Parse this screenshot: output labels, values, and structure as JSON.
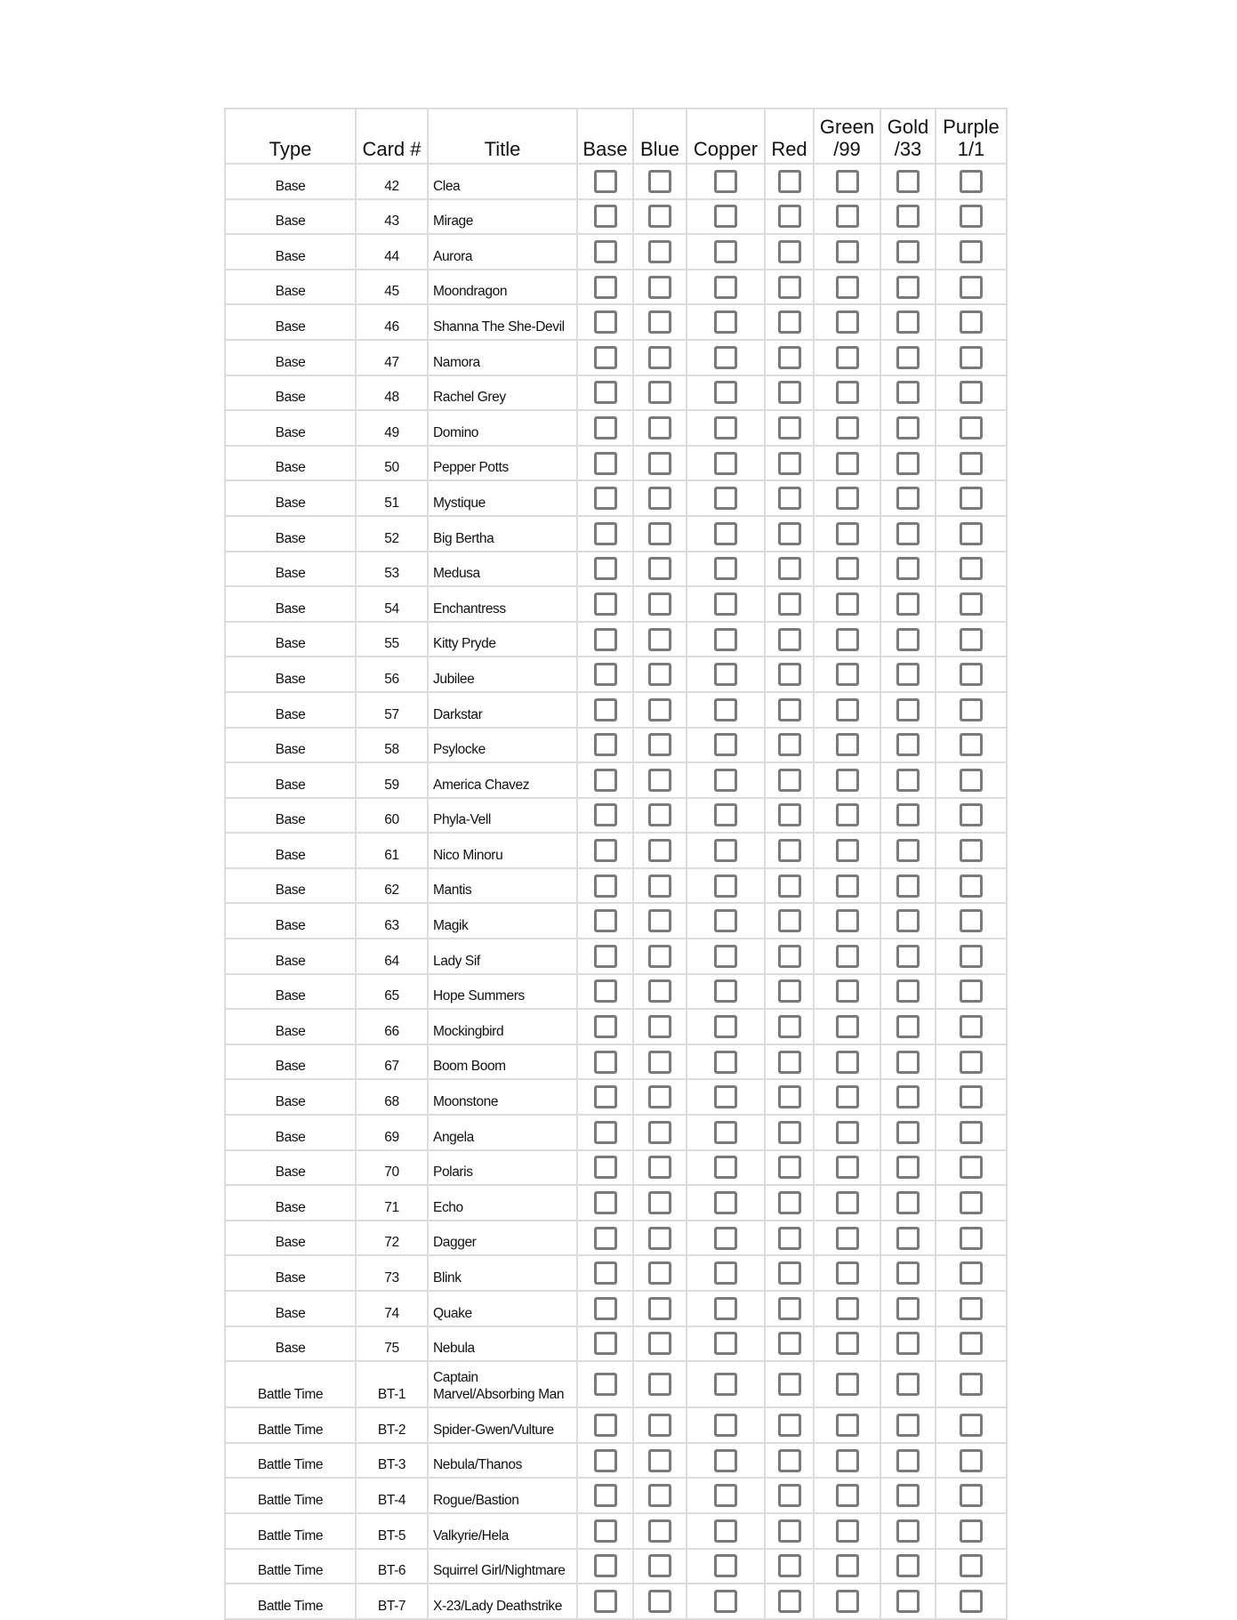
{
  "columns": [
    "Type",
    "Card #",
    "Title",
    "Base",
    "Blue",
    "Copper",
    "Red",
    "Green\n/99",
    "Gold\n/33",
    "Purple\n1/1"
  ],
  "rows": [
    {
      "type": "Base",
      "card": "42",
      "title": "Clea"
    },
    {
      "type": "Base",
      "card": "43",
      "title": "Mirage"
    },
    {
      "type": "Base",
      "card": "44",
      "title": "Aurora"
    },
    {
      "type": "Base",
      "card": "45",
      "title": "Moondragon"
    },
    {
      "type": "Base",
      "card": "46",
      "title": "Shanna The She-Devil"
    },
    {
      "type": "Base",
      "card": "47",
      "title": "Namora"
    },
    {
      "type": "Base",
      "card": "48",
      "title": "Rachel Grey"
    },
    {
      "type": "Base",
      "card": "49",
      "title": "Domino"
    },
    {
      "type": "Base",
      "card": "50",
      "title": "Pepper Potts"
    },
    {
      "type": "Base",
      "card": "51",
      "title": "Mystique"
    },
    {
      "type": "Base",
      "card": "52",
      "title": "Big Bertha"
    },
    {
      "type": "Base",
      "card": "53",
      "title": "Medusa"
    },
    {
      "type": "Base",
      "card": "54",
      "title": "Enchantress"
    },
    {
      "type": "Base",
      "card": "55",
      "title": "Kitty Pryde"
    },
    {
      "type": "Base",
      "card": "56",
      "title": "Jubilee"
    },
    {
      "type": "Base",
      "card": "57",
      "title": "Darkstar"
    },
    {
      "type": "Base",
      "card": "58",
      "title": "Psylocke"
    },
    {
      "type": "Base",
      "card": "59",
      "title": "America Chavez"
    },
    {
      "type": "Base",
      "card": "60",
      "title": "Phyla-Vell"
    },
    {
      "type": "Base",
      "card": "61",
      "title": "Nico Minoru"
    },
    {
      "type": "Base",
      "card": "62",
      "title": "Mantis"
    },
    {
      "type": "Base",
      "card": "63",
      "title": "Magik"
    },
    {
      "type": "Base",
      "card": "64",
      "title": "Lady Sif"
    },
    {
      "type": "Base",
      "card": "65",
      "title": "Hope Summers"
    },
    {
      "type": "Base",
      "card": "66",
      "title": "Mockingbird"
    },
    {
      "type": "Base",
      "card": "67",
      "title": "Boom Boom"
    },
    {
      "type": "Base",
      "card": "68",
      "title": "Moonstone"
    },
    {
      "type": "Base",
      "card": "69",
      "title": "Angela"
    },
    {
      "type": "Base",
      "card": "70",
      "title": "Polaris"
    },
    {
      "type": "Base",
      "card": "71",
      "title": "Echo"
    },
    {
      "type": "Base",
      "card": "72",
      "title": "Dagger"
    },
    {
      "type": "Base",
      "card": "73",
      "title": "Blink"
    },
    {
      "type": "Base",
      "card": "74",
      "title": "Quake"
    },
    {
      "type": "Base",
      "card": "75",
      "title": "Nebula"
    },
    {
      "type": "Battle Time",
      "card": "BT-1",
      "title": "Captain Marvel/Absorbing Man"
    },
    {
      "type": "Battle Time",
      "card": "BT-2",
      "title": "Spider-Gwen/Vulture"
    },
    {
      "type": "Battle Time",
      "card": "BT-3",
      "title": "Nebula/Thanos"
    },
    {
      "type": "Battle Time",
      "card": "BT-4",
      "title": "Rogue/Bastion"
    },
    {
      "type": "Battle Time",
      "card": "BT-5",
      "title": "Valkyrie/Hela"
    },
    {
      "type": "Battle Time",
      "card": "BT-6",
      "title": "Squirrel Girl/Nightmare"
    },
    {
      "type": "Battle Time",
      "card": "BT-7",
      "title": "X-23/Lady Deathstrike"
    }
  ],
  "checkbox_color": "#7a7a7a",
  "grid_color": "#dcdcdc"
}
